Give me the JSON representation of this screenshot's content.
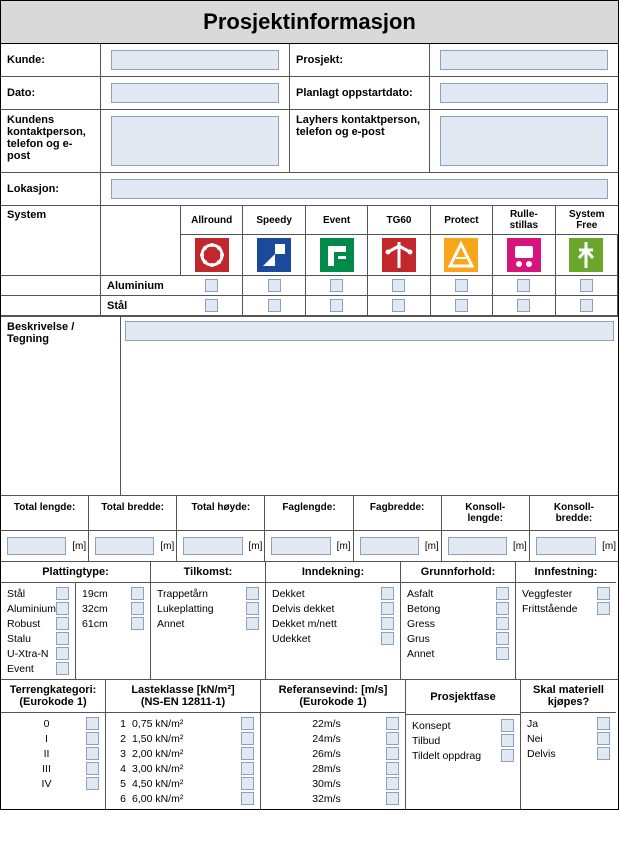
{
  "title": "Prosjektinformasjon",
  "fields": {
    "kunde": "Kunde:",
    "prosjekt": "Prosjekt:",
    "dato": "Dato:",
    "planlagt": "Planlagt oppstartdato:",
    "kundens_kontakt": "Kundens kontaktperson, telefon og e-post",
    "layhers_kontakt": "Layhers kontaktperson, telefon og e-post",
    "lokasjon": "Lokasjon:",
    "system": "System",
    "beskrivelse": "Beskrivelse / Tegning"
  },
  "systems": {
    "columns": [
      "Allround",
      "Speedy",
      "Event",
      "TG60",
      "Protect",
      "Rulle-stillas",
      "System Free"
    ],
    "icon_colors": [
      "#c1272d",
      "#1a4a9c",
      "#008a4b",
      "#c1272d",
      "#f9a61a",
      "#d6147d",
      "#6aa52c"
    ],
    "row_labels": [
      "Aluminium",
      "Stål"
    ]
  },
  "dims": {
    "headers": [
      "Total lengde:",
      "Total bredde:",
      "Total høyde:",
      "Faglengde:",
      "Fagbredde:",
      "Konsoll-lengde:",
      "Konsoll-bredde:"
    ],
    "unit": "[m]"
  },
  "section1": {
    "plattingtype": {
      "title": "Plattingtype:",
      "colA": [
        "Stål",
        "Aluminium",
        "Robust",
        "Stalu",
        "U-Xtra-N",
        "Event"
      ],
      "colB": [
        "19cm",
        "32cm",
        "61cm"
      ]
    },
    "tilkomst": {
      "title": "Tilkomst:",
      "items": [
        "Trappetårn",
        "Lukeplatting",
        "Annet"
      ]
    },
    "inndekning": {
      "title": "Inndekning:",
      "items": [
        "Dekket",
        "Delvis dekket",
        "Dekket m/nett",
        "Udekket"
      ]
    },
    "grunnforhold": {
      "title": "Grunnforhold:",
      "items": [
        "Asfalt",
        "Betong",
        "Gress",
        "Grus",
        "Annet"
      ]
    },
    "innfestning": {
      "title": "Innfestning:",
      "items": [
        "Veggfester",
        "Frittstående"
      ]
    }
  },
  "section2": {
    "terreng": {
      "title": "Terrengkategori: (Eurokode 1)",
      "items": [
        "0",
        "I",
        "II",
        "III",
        "IV"
      ]
    },
    "lasteklasse": {
      "title": "Lasteklasse [kN/m²] (NS-EN 12811-1)",
      "rows": [
        {
          "n": "1",
          "v": "0,75 kN/m²"
        },
        {
          "n": "2",
          "v": "1,50 kN/m²"
        },
        {
          "n": "3",
          "v": "2,00 kN/m²"
        },
        {
          "n": "4",
          "v": "3,00 kN/m²"
        },
        {
          "n": "5",
          "v": "4,50 kN/m²"
        },
        {
          "n": "6",
          "v": "6,00 kN/m²"
        }
      ]
    },
    "referansevind": {
      "title": "Referansevind: [m/s] (Eurokode 1)",
      "items": [
        "22m/s",
        "24m/s",
        "26m/s",
        "28m/s",
        "30m/s",
        "32m/s"
      ]
    },
    "prosjektfase": {
      "title": "Prosjektfase",
      "items": [
        "Konsept",
        "Tilbud",
        "Tildelt oppdrag"
      ]
    },
    "kjopes": {
      "title": "Skal materiell kjøpes?",
      "items": [
        "Ja",
        "Nei",
        "Delvis"
      ]
    }
  },
  "colors": {
    "input_bg": "#e3e9f2",
    "input_border": "#8ca0c0",
    "title_bg": "#d9d9d9"
  }
}
